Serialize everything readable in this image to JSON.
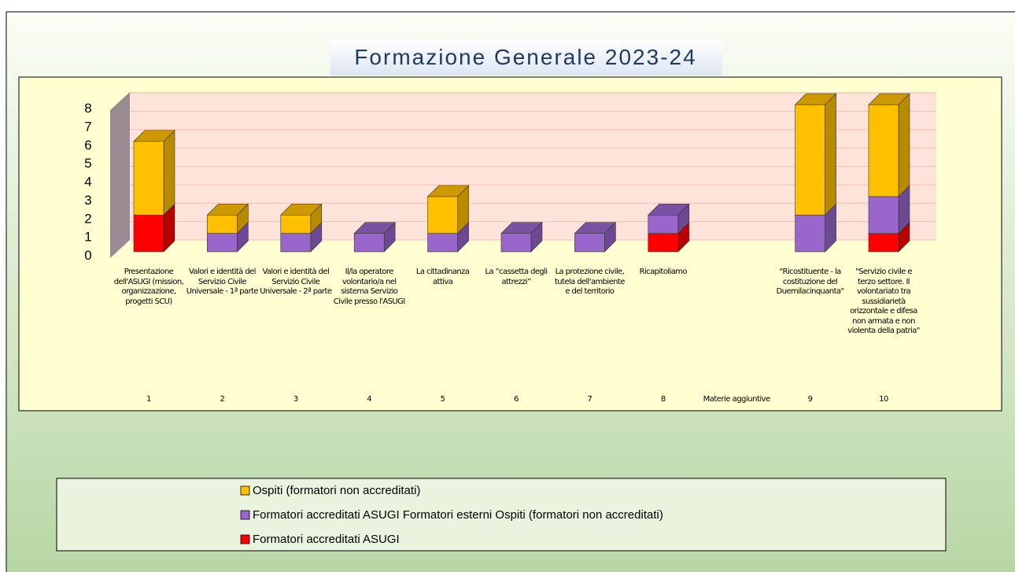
{
  "chart_data": {
    "type": "bar3d_stacked",
    "title": "Formazione Generale 2023-24",
    "category_labels": [
      "Presentazione dell'ASUGI (mission, organizzazione, progetti SCU)",
      "Valori e identità del Servizio Civile Universale - 1ª parte",
      "Valori e identità del Servizio Civile Universale - 2ª parte",
      "Il/la operatore volontario/a nel sistema Servizio Civile presso l'ASUGI",
      "La cittadinanza attiva",
      "La “cassetta degli attrezzi”",
      "La protezione civile, tutela dell'ambiente e del territorio",
      "Ricapitoliamo",
      null,
      "\"Ricostituente - la costituzione del Duemilacinquanta\"",
      "\"Servizio civile e terzo settore. Il volontariato tra sussidiarietà orizzontale e difesa non armata e non violenta della patria\""
    ],
    "categories": [
      "1",
      "2",
      "3",
      "4",
      "5",
      "6",
      "7",
      "8",
      "Materie aggiuntive",
      "9",
      "10"
    ],
    "series": [
      {
        "name": "Formatori accreditati ASUGI",
        "color": "#ff0000",
        "values": [
          2,
          0,
          0,
          0,
          0,
          0,
          0,
          1,
          null,
          0,
          1
        ]
      },
      {
        "name": "Formatori accreditati ASUGI Formatori esterni  Ospiti (formatori non accreditati)",
        "color": "#9966cc",
        "values": [
          0,
          1,
          1,
          1,
          1,
          1,
          1,
          1,
          null,
          2,
          2
        ]
      },
      {
        "name": "Ospiti (formatori non accreditati)",
        "color": "#ffc000",
        "values": [
          4,
          1,
          1,
          0,
          2,
          0,
          0,
          0,
          null,
          6,
          5
        ]
      }
    ],
    "ylim": [
      0,
      8
    ],
    "yticks": [
      0,
      1,
      2,
      3,
      4,
      5,
      6,
      7,
      8
    ],
    "grid": true
  }
}
